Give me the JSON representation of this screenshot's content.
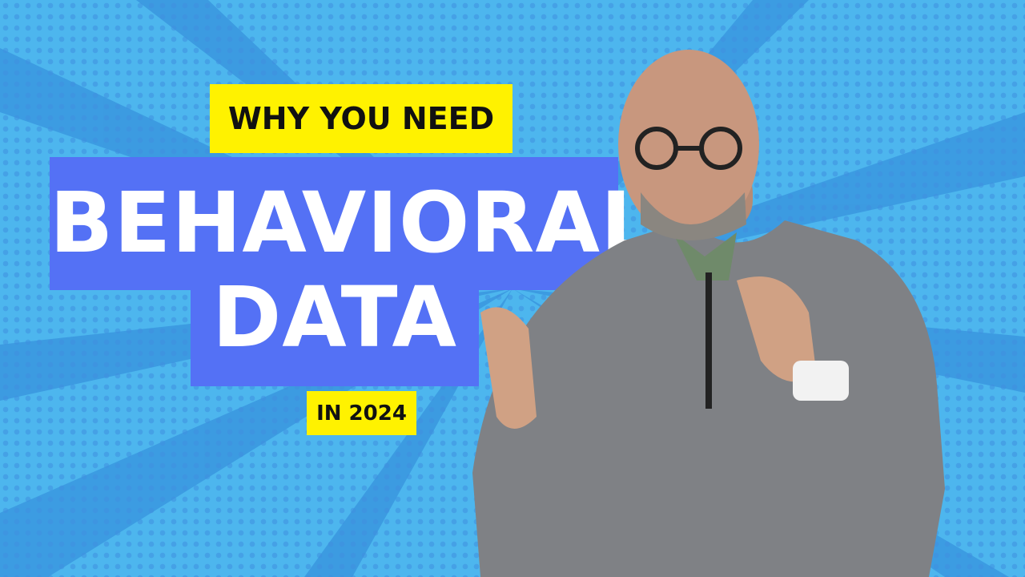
{
  "headline": {
    "top": "WHY YOU NEED",
    "main_line1": "BEHAVIORAL",
    "main_line2": "DATA",
    "bottom": "IN 2024"
  },
  "colors": {
    "background": "#4db6ee",
    "banner_blue": "#5471f5",
    "label_yellow": "#fff200",
    "text_white": "#ffffff",
    "text_black": "#111111"
  }
}
